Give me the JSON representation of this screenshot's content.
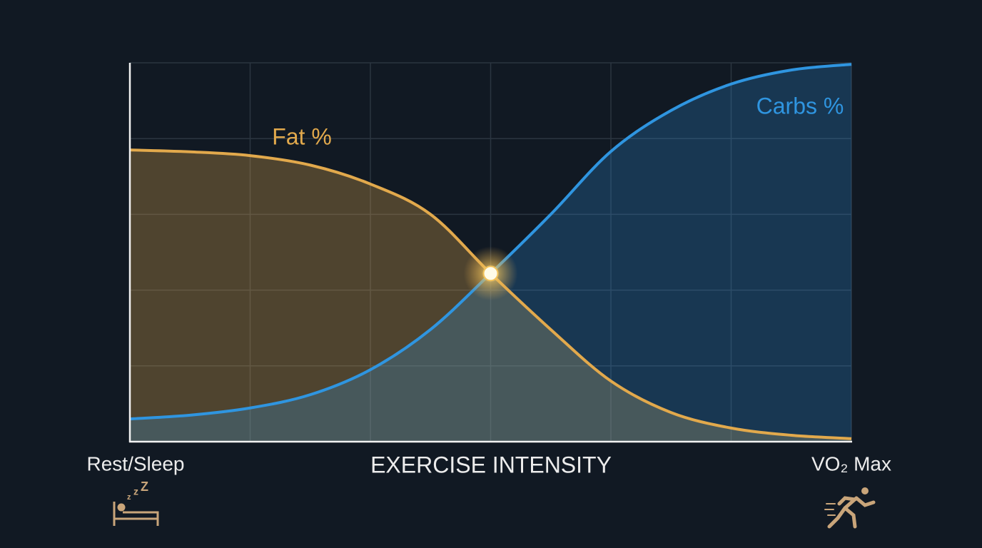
{
  "chart_data": {
    "type": "line",
    "x": [
      0,
      0.5,
      1,
      1.5,
      2,
      2.5,
      3,
      3.5,
      4,
      4.5,
      5,
      5.5,
      6
    ],
    "series": [
      {
        "name": "Fat %",
        "color": "#e2a94c",
        "values": [
          77,
          76.5,
          75.5,
          73,
          68,
          60,
          44.4,
          29.6,
          16,
          7.7,
          3.6,
          1.7,
          0.8
        ]
      },
      {
        "name": "Carbs %",
        "color": "#2f95e0",
        "values": [
          6,
          7,
          8.9,
          12.4,
          19,
          29.6,
          44.4,
          60,
          76.6,
          87.4,
          94.4,
          98.1,
          99.6
        ]
      }
    ],
    "xlim": [
      0,
      6
    ],
    "xticks": [
      0,
      1,
      2,
      3,
      4,
      5,
      6
    ],
    "ylim": [
      0,
      100
    ],
    "yticks": [
      0,
      20,
      40,
      60,
      80,
      100
    ],
    "grid": true,
    "xlabel": "EXERCISE INTENSITY",
    "x_start_label": "Rest/Sleep",
    "x_end_label": "VO₂ Max"
  }
}
